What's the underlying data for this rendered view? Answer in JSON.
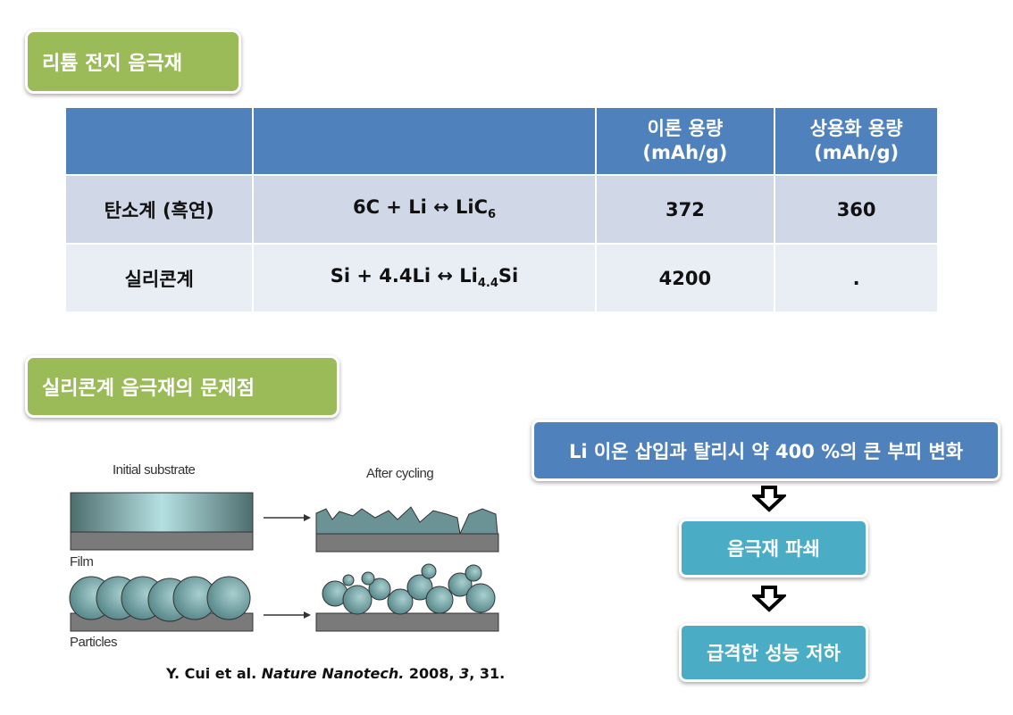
{
  "section1_title": "리튬 전지 음극재",
  "table": {
    "headers": [
      "",
      "",
      "이론 용량\n(mAh/g)",
      "상용화 용량\n(mAh/g)"
    ],
    "header_lines": {
      "theory": [
        "이론 용량",
        "(mAh/g)"
      ],
      "commercial": [
        "상용화 용량",
        "(mAh/g)"
      ]
    },
    "rows": [
      {
        "material": "탄소계 (흑연)",
        "reaction": "6C + Li ↔ LiC",
        "reaction_sub": "6",
        "reaction_tail": "",
        "theory": "372",
        "commercial": "360"
      },
      {
        "material": "실리콘계",
        "reaction": "Si + 4.4Li ↔ Li",
        "reaction_sub": "4.4",
        "reaction_tail": "Si",
        "theory": "4200",
        "commercial": "."
      }
    ]
  },
  "section2_title": "실리콘계 음극재의 문제점",
  "figure": {
    "initial_label": "Initial substrate",
    "after_label": "After cycling",
    "film_label": "Film",
    "particles_label": "Particles"
  },
  "citation": {
    "authors": "Y. Cui  et al. ",
    "journal": "Nature Nanotech.",
    "year": " 2008, ",
    "volume": "3",
    "page": ", 31."
  },
  "flow": {
    "step1": "Li 이온 삽입과 탈리시 약 400 %의 큰 부피 변화",
    "step2": "음극재 파쇄",
    "step3": "급격한 성능 저하"
  },
  "colors": {
    "green": "#9bbb59",
    "header_blue": "#4f81bd",
    "row1": "#d0d8e8",
    "row2": "#e9edf4",
    "teal": "#4bacc6"
  }
}
